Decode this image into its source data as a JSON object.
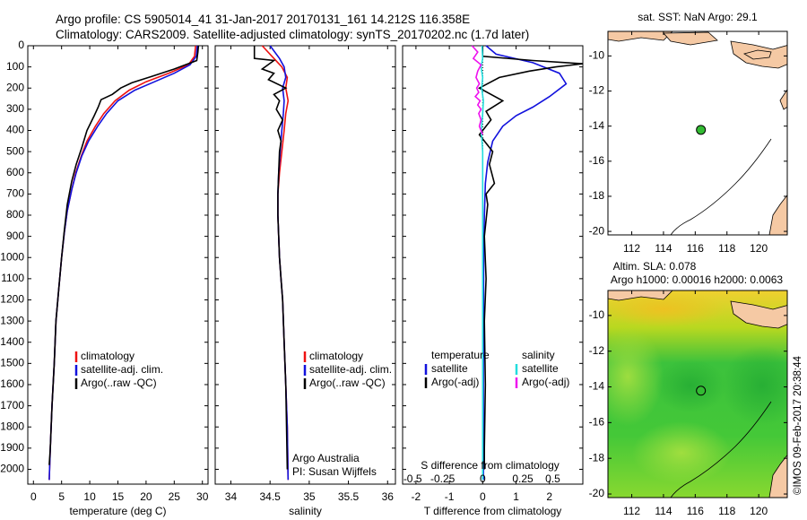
{
  "header": {
    "line1": "Argo profile: CS 5905014_41 31-Jan-2017 20170131_161 14.212S 116.358E",
    "line2": "Climatology: CARS2009. Satellite-adjusted climatology: synTS_20170202.nc (1.7d later)"
  },
  "colors": {
    "climatology": "#ee1111",
    "satellite": "#1111dd",
    "argo": "#000000",
    "sal_sat": "#22dddd",
    "sal_argo": "#ee11ee",
    "land": "#f5c9a4",
    "argo_point": "#33bb33"
  },
  "depth_ticks": [
    "0",
    "100",
    "200",
    "300",
    "400",
    "500",
    "600",
    "700",
    "800",
    "900",
    "1000",
    "1100",
    "1200",
    "1300",
    "1400",
    "1500",
    "1600",
    "1700",
    "1800",
    "1900",
    "2000"
  ],
  "depth_values": [
    0,
    100,
    200,
    300,
    400,
    500,
    600,
    700,
    800,
    900,
    1000,
    1100,
    1200,
    1300,
    1400,
    1500,
    1600,
    1700,
    1800,
    1900,
    2000
  ],
  "chart_data": [
    {
      "type": "line",
      "xlabel": "temperature (deg C)",
      "ylabel": "",
      "xlim": [
        -1,
        31
      ],
      "ylim": [
        2070,
        0
      ],
      "xticks": [
        "0",
        "5",
        "10",
        "15",
        "20",
        "25",
        "30"
      ],
      "xtick_values": [
        0,
        5,
        10,
        15,
        20,
        25,
        30
      ],
      "legend": [
        "climatology",
        "satellite-adj. clim.",
        "Argo(..raw -QC)"
      ],
      "series": [
        {
          "name": "climatology",
          "color": "#ee1111",
          "x": [
            28.8,
            28.6,
            27.5,
            24,
            20,
            17,
            14.5,
            12.5,
            11,
            9.5,
            8.5,
            7.5,
            6.8,
            6,
            5.5,
            5,
            4.5,
            4,
            3.7,
            3.3,
            3.0,
            2.8
          ],
          "y": [
            0,
            50,
            90,
            130,
            170,
            210,
            260,
            320,
            380,
            450,
            520,
            600,
            680,
            780,
            880,
            1000,
            1150,
            1300,
            1500,
            1700,
            1900,
            2050
          ]
        },
        {
          "name": "satellite-adj. clim.",
          "color": "#1111dd",
          "x": [
            29.1,
            28.9,
            27.8,
            25,
            21.5,
            18,
            15,
            13,
            11.4,
            9.8,
            8.6,
            7.6,
            6.8,
            6,
            5.5,
            5,
            4.5,
            4,
            3.7,
            3.3,
            3.0,
            2.8
          ],
          "y": [
            0,
            50,
            90,
            130,
            170,
            210,
            260,
            320,
            380,
            450,
            520,
            600,
            680,
            780,
            880,
            1000,
            1150,
            1300,
            1500,
            1700,
            1900,
            2050
          ]
        },
        {
          "name": "Argo(..raw -QC)",
          "color": "#000000",
          "x": [
            29.3,
            29.2,
            29.0,
            25,
            21,
            17.5,
            15.5,
            14,
            12,
            11.5,
            10.8,
            9.5,
            8.6,
            7.6,
            6.8,
            6,
            5.5,
            5,
            4.5,
            4,
            3.7,
            3.3,
            3.0,
            2.8
          ],
          "y": [
            0,
            30,
            70,
            110,
            145,
            175,
            200,
            230,
            255,
            290,
            330,
            400,
            480,
            560,
            640,
            750,
            870,
            1000,
            1150,
            1300,
            1500,
            1700,
            1900,
            1980
          ]
        }
      ]
    },
    {
      "type": "line",
      "xlabel": "salinity",
      "ylabel": "",
      "xlim": [
        33.8,
        36.1
      ],
      "ylim": [
        2070,
        0
      ],
      "xticks": [
        "34",
        "34.5",
        "35",
        "35.5",
        "36"
      ],
      "xtick_values": [
        34,
        34.5,
        35,
        35.5,
        36
      ],
      "legend": [
        "climatology",
        "satellite-adj. clim.",
        "Argo(..raw -QC)"
      ],
      "annotations": [
        "Argo Australia",
        "PI: Susan Wijffels"
      ],
      "series": [
        {
          "name": "climatology",
          "color": "#ee1111",
          "x": [
            34.4,
            34.55,
            34.65,
            34.72,
            34.7,
            34.73,
            34.7,
            34.68,
            34.65,
            34.62,
            34.6,
            34.6,
            34.61,
            34.62,
            34.64,
            34.66,
            34.68,
            34.7,
            34.72,
            34.73
          ],
          "y": [
            0,
            60,
            100,
            150,
            200,
            260,
            320,
            400,
            500,
            600,
            700,
            800,
            900,
            1000,
            1100,
            1200,
            1400,
            1600,
            1800,
            2050
          ]
        },
        {
          "name": "satellite-adj. clim.",
          "color": "#1111dd",
          "x": [
            34.5,
            34.62,
            34.68,
            34.7,
            34.66,
            34.68,
            34.67,
            34.65,
            34.63,
            34.61,
            34.6,
            34.6,
            34.61,
            34.62,
            34.64,
            34.66,
            34.68,
            34.7,
            34.72,
            34.73
          ],
          "y": [
            0,
            60,
            100,
            150,
            200,
            260,
            320,
            400,
            500,
            600,
            700,
            800,
            900,
            1000,
            1100,
            1200,
            1400,
            1600,
            1800,
            2050
          ]
        },
        {
          "name": "Argo(..raw -QC)",
          "color": "#000000",
          "x": [
            34.3,
            34.3,
            34.55,
            34.4,
            34.55,
            34.48,
            34.7,
            34.55,
            34.62,
            34.58,
            34.66,
            34.6,
            34.64,
            34.62,
            34.61,
            34.6,
            34.6,
            34.61,
            34.62,
            34.64,
            34.66,
            34.68,
            34.7,
            34.72
          ],
          "y": [
            0,
            60,
            70,
            110,
            130,
            160,
            200,
            230,
            260,
            300,
            350,
            400,
            450,
            500,
            600,
            700,
            800,
            900,
            1000,
            1100,
            1200,
            1400,
            1600,
            2000
          ]
        }
      ]
    },
    {
      "type": "line",
      "xlabel": "T difference from climatology",
      "x2label": "S difference from climatology",
      "ylabel": "",
      "xlim": [
        -2.4,
        3.0
      ],
      "ylim": [
        2070,
        0
      ],
      "xticks": [
        "-2",
        "-1",
        "0",
        "1",
        "2"
      ],
      "xtick_values": [
        -2,
        -1,
        0,
        1,
        2
      ],
      "x2ticks": [
        "-0.5",
        "-0.25",
        "0",
        "0.25",
        "0.5"
      ],
      "legend_temperature": [
        "temperature",
        "satellite",
        "Argo(-adj)"
      ],
      "legend_salinity": [
        "salinity",
        "satellite",
        "Argo(-adj)"
      ],
      "series": [
        {
          "name": "satellite",
          "color": "#1111dd",
          "x": [
            0.1,
            0.4,
            1.5,
            2.3,
            2.5,
            2.0,
            1.5,
            1.0,
            0.6,
            0.3,
            0.15,
            0.08,
            0.05,
            0.03,
            0.02,
            0.02
          ],
          "y": [
            0,
            40,
            80,
            130,
            180,
            240,
            290,
            330,
            380,
            450,
            550,
            650,
            800,
            1000,
            1500,
            2050
          ]
        },
        {
          "name": "Argo(-adj)",
          "color": "#000000",
          "x": [
            0.0,
            0.0,
            1.5,
            3.0,
            2.2,
            1.4,
            0.5,
            -0.1,
            0.6,
            0.1,
            0.25,
            -0.1,
            0.3,
            0.2,
            0.35,
            0.1,
            0.15,
            0.05,
            0.1,
            0.05,
            0.08,
            0.05,
            0.05
          ],
          "y": [
            0,
            50,
            70,
            85,
            100,
            120,
            150,
            200,
            260,
            310,
            350,
            420,
            500,
            560,
            650,
            700,
            750,
            900,
            1100,
            1300,
            1600,
            1900,
            2000
          ]
        },
        {
          "name": "satellite",
          "color": "#22dddd",
          "x": [
            -0.02,
            0.0,
            -0.05,
            0.0,
            -0.03,
            0.02,
            0.0,
            -0.04,
            0.0,
            0.0,
            0.0,
            0.0
          ],
          "y": [
            0,
            60,
            100,
            150,
            200,
            260,
            320,
            400,
            500,
            600,
            1000,
            2050
          ]
        },
        {
          "name": "Argo(-adj)",
          "color": "#ee11ee",
          "x": [
            -0.32,
            -0.15,
            -0.28,
            -0.05,
            -0.15,
            -0.2,
            -0.1,
            -0.18,
            -0.12,
            -0.22,
            -0.08,
            -0.15,
            -0.05,
            -0.12,
            -0.05,
            -0.1,
            0.0
          ],
          "y": [
            0,
            30,
            60,
            90,
            120,
            150,
            180,
            200,
            220,
            240,
            260,
            280,
            300,
            320,
            350,
            380,
            420
          ]
        }
      ]
    },
    {
      "type": "scatter",
      "title": "sat. SST: NaN Argo: 29.1",
      "xlabel": "",
      "ylabel": "",
      "xlim": [
        110.5,
        121.8
      ],
      "ylim": [
        -20.2,
        -8.6
      ],
      "xticks": [
        "112",
        "114",
        "116",
        "118",
        "120"
      ],
      "xtick_values": [
        112,
        114,
        116,
        118,
        120
      ],
      "yticks": [
        "-10",
        "-12",
        "-14",
        "-16",
        "-18",
        "-20"
      ],
      "ytick_values": [
        -10,
        -12,
        -14,
        -16,
        -18,
        -20
      ],
      "series": [
        {
          "name": "Argo",
          "x": [
            116.358
          ],
          "y": [
            -14.212
          ]
        }
      ]
    },
    {
      "type": "heatmap",
      "title_line1": "Altim. SLA: 0.078",
      "title_line2": "Argo h1000: 0.00016 h2000: 0.0063",
      "xlabel": "",
      "ylabel": "",
      "xlim": [
        110.5,
        121.8
      ],
      "ylim": [
        -20.2,
        -8.6
      ],
      "xticks": [
        "112",
        "114",
        "116",
        "118",
        "120"
      ],
      "xtick_values": [
        112,
        114,
        116,
        118,
        120
      ],
      "yticks": [
        "-10",
        "-12",
        "-14",
        "-16",
        "-18",
        "-20"
      ],
      "ytick_values": [
        -10,
        -12,
        -14,
        -16,
        -18,
        -20
      ],
      "series": [
        {
          "name": "Argo",
          "x": [
            116.358
          ],
          "y": [
            -14.212
          ]
        }
      ]
    }
  ],
  "footer": {
    "credit": "©IMOS 09-Feb-2017 20:38:44"
  }
}
